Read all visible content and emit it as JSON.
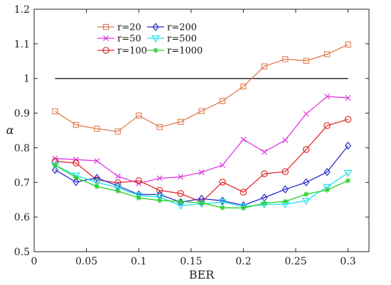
{
  "chart_data": {
    "type": "line",
    "title": "",
    "xlabel": "BER",
    "ylabel": "α",
    "xlim": [
      0,
      0.32
    ],
    "ylim": [
      0.5,
      1.2
    ],
    "xticks": [
      0,
      0.05,
      0.1,
      0.15,
      0.2,
      0.25,
      0.3
    ],
    "xtick_labels": [
      "0",
      "0.05",
      "0.1",
      "0.15",
      "0.2",
      "0.25",
      "0.3"
    ],
    "yticks": [
      0.5,
      0.6,
      0.7,
      0.8,
      0.9,
      1,
      1.1,
      1.2
    ],
    "ytick_labels": [
      "0.5",
      "0.6",
      "0.7",
      "0.8",
      "0.9",
      "1",
      "1.1",
      "1.2"
    ],
    "grid": false,
    "legend_position": "top-left",
    "x": [
      0.02,
      0.04,
      0.06,
      0.08,
      0.1,
      0.12,
      0.14,
      0.16,
      0.18,
      0.2,
      0.22,
      0.24,
      0.26,
      0.28,
      0.3
    ],
    "series": [
      {
        "name": "r=20",
        "color": "#e07b4f",
        "marker": "square",
        "values": [
          0.905,
          0.866,
          0.855,
          0.847,
          0.893,
          0.86,
          0.875,
          0.906,
          0.935,
          0.977,
          1.035,
          1.056,
          1.051,
          1.07,
          1.098
        ]
      },
      {
        "name": "r=50",
        "color": "#e038e0",
        "marker": "x",
        "values": [
          0.769,
          0.766,
          0.762,
          0.718,
          0.697,
          0.712,
          0.716,
          0.729,
          0.75,
          0.824,
          0.788,
          0.822,
          0.898,
          0.948,
          0.944
        ]
      },
      {
        "name": "r=100",
        "color": "#e02b2b",
        "marker": "circle",
        "values": [
          0.761,
          0.756,
          0.707,
          0.699,
          0.705,
          0.677,
          0.668,
          0.643,
          0.701,
          0.672,
          0.725,
          0.731,
          0.795,
          0.864,
          0.882
        ]
      },
      {
        "name": "r=200",
        "color": "#2b2bc8",
        "marker": "diamond",
        "values": [
          0.736,
          0.701,
          0.713,
          0.69,
          0.665,
          0.665,
          0.643,
          0.653,
          0.647,
          0.634,
          0.656,
          0.68,
          0.7,
          0.73,
          0.806
        ]
      },
      {
        "name": "r=500",
        "color": "#1ee0e6",
        "marker": "triangle-down",
        "values": [
          0.75,
          0.72,
          0.7,
          0.685,
          0.662,
          0.658,
          0.633,
          0.638,
          0.643,
          0.63,
          0.636,
          0.637,
          0.647,
          0.687,
          0.728
        ]
      },
      {
        "name": "r=1000",
        "color": "#22d022",
        "marker": "asterisk",
        "values": [
          0.75,
          0.714,
          0.688,
          0.675,
          0.655,
          0.648,
          0.645,
          0.641,
          0.627,
          0.626,
          0.64,
          0.645,
          0.666,
          0.678,
          0.705
        ]
      }
    ],
    "reference_line": {
      "y": 1,
      "x_range": [
        0.02,
        0.3
      ],
      "color": "#000000"
    }
  }
}
